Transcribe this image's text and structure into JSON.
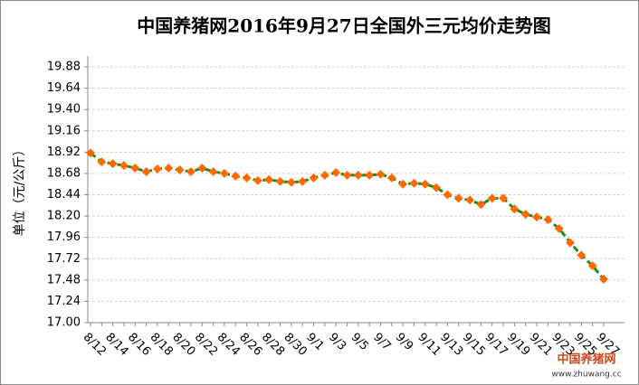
{
  "chart_data": {
    "type": "line",
    "title": "中国养猪网2016年9月27日全国外三元均价走势图",
    "y_label": "单位（元/公斤）",
    "watermark": {
      "name": "中国养猪网",
      "url": "www.zhuwang.cc"
    },
    "categories": [
      "8/12",
      null,
      "8/14",
      null,
      "8/16",
      null,
      "8/18",
      null,
      "8/20",
      null,
      "8/22",
      null,
      "8/24",
      null,
      "8/26",
      null,
      "8/28",
      null,
      "8/30",
      null,
      "9/1",
      null,
      "9/3",
      null,
      "9/5",
      null,
      "9/7",
      null,
      "9/9",
      null,
      "9/11",
      null,
      "9/13",
      null,
      "9/15",
      null,
      "9/17",
      null,
      "9/19",
      null,
      "9/21",
      null,
      "9/23",
      null,
      "9/25",
      null,
      "9/27"
    ],
    "series": [
      {
        "name": "外三元",
        "color": "#1e8c1e",
        "marker_color": "#ff6a00",
        "values": [
          18.91,
          18.81,
          18.79,
          18.77,
          18.74,
          18.7,
          18.73,
          18.74,
          18.72,
          18.7,
          18.74,
          18.7,
          18.68,
          18.65,
          18.63,
          18.6,
          18.61,
          18.59,
          18.58,
          18.59,
          18.63,
          18.66,
          18.69,
          18.66,
          18.66,
          18.66,
          18.67,
          18.63,
          18.56,
          18.57,
          18.56,
          18.52,
          18.44,
          18.4,
          18.38,
          18.33,
          18.4,
          18.4,
          18.28,
          18.22,
          18.19,
          18.16,
          18.06,
          17.9,
          17.76,
          17.64,
          17.49
        ]
      }
    ],
    "ylim": [
      17.0,
      19.88
    ],
    "yticks": [
      {
        "value": 17.0,
        "label": "17.00"
      },
      17.24,
      17.48,
      17.72,
      17.96,
      {
        "value": 18.2,
        "label": "18.20"
      },
      18.44,
      18.68,
      18.92,
      19.16,
      {
        "value": 19.4,
        "label": "19.40"
      },
      19.64,
      19.88
    ],
    "grid": true
  }
}
